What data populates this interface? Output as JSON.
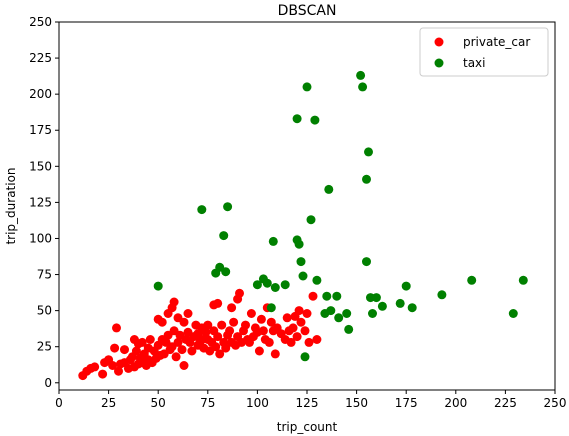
{
  "chart_data": {
    "type": "scatter",
    "title": "DBSCAN",
    "xlabel": "trip_count",
    "ylabel": "trip_duration",
    "xlim": [
      0,
      250
    ],
    "ylim": [
      -5,
      250
    ],
    "xticks": [
      0,
      25,
      50,
      75,
      100,
      125,
      150,
      175,
      200,
      225,
      250
    ],
    "yticks": [
      0,
      25,
      50,
      75,
      100,
      125,
      150,
      175,
      200,
      225,
      250
    ],
    "grid": false,
    "legend": "top-right",
    "series": [
      {
        "name": "private_car",
        "color": "#ff0000",
        "points": [
          [
            12,
            5
          ],
          [
            14,
            8
          ],
          [
            16,
            10
          ],
          [
            18,
            11
          ],
          [
            22,
            6
          ],
          [
            23,
            14
          ],
          [
            25,
            16
          ],
          [
            27,
            12
          ],
          [
            28,
            24
          ],
          [
            29,
            38
          ],
          [
            30,
            8
          ],
          [
            31,
            13
          ],
          [
            33,
            14
          ],
          [
            33,
            23
          ],
          [
            35,
            10
          ],
          [
            36,
            16
          ],
          [
            37,
            18
          ],
          [
            38,
            30
          ],
          [
            38,
            11
          ],
          [
            39,
            22
          ],
          [
            40,
            13
          ],
          [
            40,
            27
          ],
          [
            41,
            17
          ],
          [
            42,
            28
          ],
          [
            42,
            14
          ],
          [
            43,
            20
          ],
          [
            44,
            12
          ],
          [
            45,
            16
          ],
          [
            45,
            24
          ],
          [
            46,
            30
          ],
          [
            47,
            14
          ],
          [
            48,
            22
          ],
          [
            49,
            17
          ],
          [
            50,
            26
          ],
          [
            50,
            44
          ],
          [
            51,
            19
          ],
          [
            52,
            30
          ],
          [
            52,
            42
          ],
          [
            53,
            20
          ],
          [
            54,
            28
          ],
          [
            55,
            48
          ],
          [
            55,
            33
          ],
          [
            56,
            23
          ],
          [
            57,
            52
          ],
          [
            57,
            25
          ],
          [
            58,
            36
          ],
          [
            58,
            56
          ],
          [
            59,
            18
          ],
          [
            60,
            28
          ],
          [
            60,
            45
          ],
          [
            61,
            33
          ],
          [
            62,
            23
          ],
          [
            63,
            42
          ],
          [
            63,
            12
          ],
          [
            64,
            30
          ],
          [
            65,
            35
          ],
          [
            65,
            48
          ],
          [
            66,
            28
          ],
          [
            67,
            22
          ],
          [
            68,
            32
          ],
          [
            69,
            40
          ],
          [
            70,
            34
          ],
          [
            70,
            26
          ],
          [
            71,
            28
          ],
          [
            72,
            30
          ],
          [
            72,
            38
          ],
          [
            73,
            24
          ],
          [
            74,
            35
          ],
          [
            75,
            30
          ],
          [
            75,
            40
          ],
          [
            76,
            22
          ],
          [
            77,
            28
          ],
          [
            78,
            36
          ],
          [
            78,
            54
          ],
          [
            79,
            25
          ],
          [
            80,
            55
          ],
          [
            80,
            32
          ],
          [
            81,
            20
          ],
          [
            82,
            40
          ],
          [
            83,
            28
          ],
          [
            84,
            24
          ],
          [
            85,
            33
          ],
          [
            86,
            36
          ],
          [
            87,
            52
          ],
          [
            87,
            28
          ],
          [
            88,
            42
          ],
          [
            89,
            26
          ],
          [
            90,
            58
          ],
          [
            90,
            32
          ],
          [
            91,
            62
          ],
          [
            92,
            28
          ],
          [
            93,
            36
          ],
          [
            94,
            40
          ],
          [
            95,
            30
          ],
          [
            96,
            28
          ],
          [
            97,
            48
          ],
          [
            98,
            32
          ],
          [
            99,
            38
          ],
          [
            100,
            35
          ],
          [
            101,
            22
          ],
          [
            102,
            44
          ],
          [
            103,
            36
          ],
          [
            104,
            30
          ],
          [
            105,
            52
          ],
          [
            106,
            28
          ],
          [
            107,
            42
          ],
          [
            108,
            36
          ],
          [
            109,
            20
          ],
          [
            110,
            38
          ],
          [
            112,
            34
          ],
          [
            114,
            30
          ],
          [
            115,
            45
          ],
          [
            116,
            36
          ],
          [
            117,
            28
          ],
          [
            118,
            38
          ],
          [
            119,
            46
          ],
          [
            120,
            32
          ],
          [
            121,
            50
          ],
          [
            122,
            42
          ],
          [
            124,
            36
          ],
          [
            125,
            48
          ],
          [
            126,
            28
          ],
          [
            128,
            60
          ],
          [
            130,
            30
          ]
        ]
      },
      {
        "name": "taxi",
        "color": "#008000",
        "points": [
          [
            50,
            67
          ],
          [
            72,
            120
          ],
          [
            79,
            76
          ],
          [
            81,
            80
          ],
          [
            83,
            102
          ],
          [
            84,
            77
          ],
          [
            85,
            122
          ],
          [
            100,
            68
          ],
          [
            103,
            72
          ],
          [
            105,
            69
          ],
          [
            107,
            52
          ],
          [
            108,
            98
          ],
          [
            109,
            66
          ],
          [
            114,
            68
          ],
          [
            120,
            99
          ],
          [
            120,
            183
          ],
          [
            121,
            96
          ],
          [
            122,
            84
          ],
          [
            123,
            74
          ],
          [
            124,
            18
          ],
          [
            125,
            205
          ],
          [
            127,
            113
          ],
          [
            129,
            182
          ],
          [
            130,
            71
          ],
          [
            134,
            48
          ],
          [
            135,
            60
          ],
          [
            136,
            134
          ],
          [
            137,
            50
          ],
          [
            140,
            60
          ],
          [
            141,
            45
          ],
          [
            145,
            48
          ],
          [
            146,
            37
          ],
          [
            152,
            213
          ],
          [
            153,
            205
          ],
          [
            155,
            141
          ],
          [
            155,
            84
          ],
          [
            156,
            160
          ],
          [
            157,
            59
          ],
          [
            158,
            48
          ],
          [
            160,
            59
          ],
          [
            163,
            53
          ],
          [
            172,
            55
          ],
          [
            175,
            67
          ],
          [
            178,
            52
          ],
          [
            193,
            61
          ],
          [
            208,
            71
          ],
          [
            229,
            48
          ],
          [
            234,
            71
          ]
        ]
      }
    ]
  }
}
